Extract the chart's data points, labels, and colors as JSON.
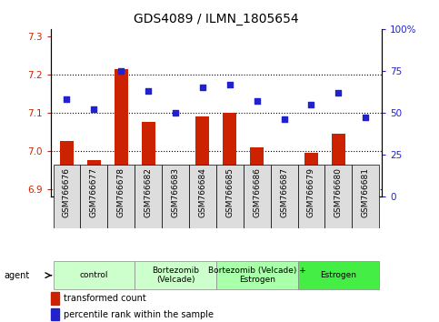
{
  "title": "GDS4089 / ILMN_1805654",
  "samples": [
    "GSM766676",
    "GSM766677",
    "GSM766678",
    "GSM766682",
    "GSM766683",
    "GSM766684",
    "GSM766685",
    "GSM766686",
    "GSM766687",
    "GSM766679",
    "GSM766680",
    "GSM766681"
  ],
  "bar_values": [
    7.025,
    6.975,
    7.215,
    7.075,
    6.945,
    7.09,
    7.1,
    7.01,
    6.915,
    6.995,
    7.045,
    6.91
  ],
  "scatter_values": [
    58,
    52,
    75,
    63,
    50,
    65,
    67,
    57,
    46,
    55,
    62,
    47
  ],
  "ylim_left": [
    6.88,
    7.32
  ],
  "ylim_right": [
    0,
    100
  ],
  "yticks_left": [
    6.9,
    7.0,
    7.1,
    7.2,
    7.3
  ],
  "yticks_right": [
    0,
    25,
    50,
    75,
    100
  ],
  "ytick_labels_right": [
    "0",
    "25",
    "50",
    "75",
    "100%"
  ],
  "bar_color": "#cc2200",
  "scatter_color": "#2222cc",
  "bar_bottom": 6.88,
  "groups": [
    {
      "label": "control",
      "start": 0,
      "end": 3,
      "color": "#ccffcc"
    },
    {
      "label": "Bortezomib\n(Velcade)",
      "start": 3,
      "end": 6,
      "color": "#ccffcc"
    },
    {
      "label": "Bortezomib (Velcade) +\nEstrogen",
      "start": 6,
      "end": 9,
      "color": "#aaffaa"
    },
    {
      "label": "Estrogen",
      "start": 9,
      "end": 12,
      "color": "#44ee44"
    }
  ],
  "agent_label": "agent",
  "legend_bar_label": "transformed count",
  "legend_scatter_label": "percentile rank within the sample",
  "background_color": "#ffffff",
  "plot_bg_color": "#ffffff",
  "title_fontsize": 10,
  "tick_fontsize": 7.5,
  "xtick_fontsize": 6.5
}
